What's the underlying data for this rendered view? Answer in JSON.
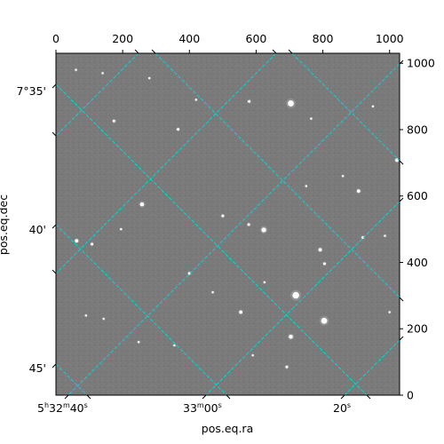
{
  "chart_data": {
    "type": "scatter",
    "title": "",
    "xlabel": "pos.eq.ra",
    "ylabel": "pos.eq.dec",
    "pixel_axes": {
      "x_ticks": [
        0,
        200,
        400,
        600,
        800,
        1000
      ],
      "x_tick_labels": [
        "0",
        "200",
        "400",
        "600",
        "800",
        "1000"
      ],
      "xlim": [
        0,
        1030
      ],
      "y_ticks": [
        0,
        200,
        400,
        600,
        800,
        1000
      ],
      "y_tick_labels": [
        "0",
        "200",
        "400",
        "600",
        "800",
        "1000"
      ],
      "ylim": [
        0,
        1030
      ]
    },
    "ra_tick_labels": [
      {
        "h": "5",
        "m": "32",
        "s": "40"
      },
      {
        "h": "",
        "m": "33",
        "s": "00"
      },
      {
        "h": "",
        "m": "",
        "s": "20"
      }
    ],
    "dec_tick_labels": [
      "7°35'",
      "40'",
      "45'"
    ],
    "grid": true,
    "grid_color": "#00d8d8",
    "background_color": "#7a7a7a",
    "stars": [
      [
        704,
        879,
        9
      ],
      [
        719,
        301,
        10
      ],
      [
        804,
        224,
        9
      ],
      [
        623,
        498,
        7
      ],
      [
        258,
        575,
        6
      ],
      [
        907,
        615,
        5
      ],
      [
        1022,
        708,
        5
      ],
      [
        366,
        801,
        4
      ],
      [
        174,
        826,
        4
      ],
      [
        579,
        885,
        4
      ],
      [
        704,
        176,
        6
      ],
      [
        554,
        250,
        5
      ],
      [
        792,
        438,
        5
      ],
      [
        805,
        396,
        4
      ],
      [
        692,
        85,
        4
      ],
      [
        400,
        367,
        4
      ],
      [
        62,
        465,
        5
      ],
      [
        108,
        455,
        4
      ],
      [
        143,
        230,
        3
      ],
      [
        90,
        240,
        3
      ],
      [
        248,
        160,
        3
      ],
      [
        500,
        540,
        4
      ],
      [
        920,
        475,
        4
      ],
      [
        986,
        480,
        3
      ],
      [
        578,
        514,
        4
      ],
      [
        590,
        120,
        3
      ],
      [
        950,
        870,
        3
      ],
      [
        765,
        833,
        3
      ],
      [
        860,
        660,
        3
      ],
      [
        195,
        500,
        3
      ],
      [
        355,
        150,
        3
      ],
      [
        470,
        310,
        3
      ],
      [
        625,
        340,
        3
      ],
      [
        280,
        955,
        3
      ],
      [
        750,
        630,
        3
      ],
      [
        420,
        890,
        3
      ],
      [
        60,
        980,
        3
      ],
      [
        140,
        970,
        3
      ],
      [
        1000,
        250,
        3
      ]
    ]
  }
}
